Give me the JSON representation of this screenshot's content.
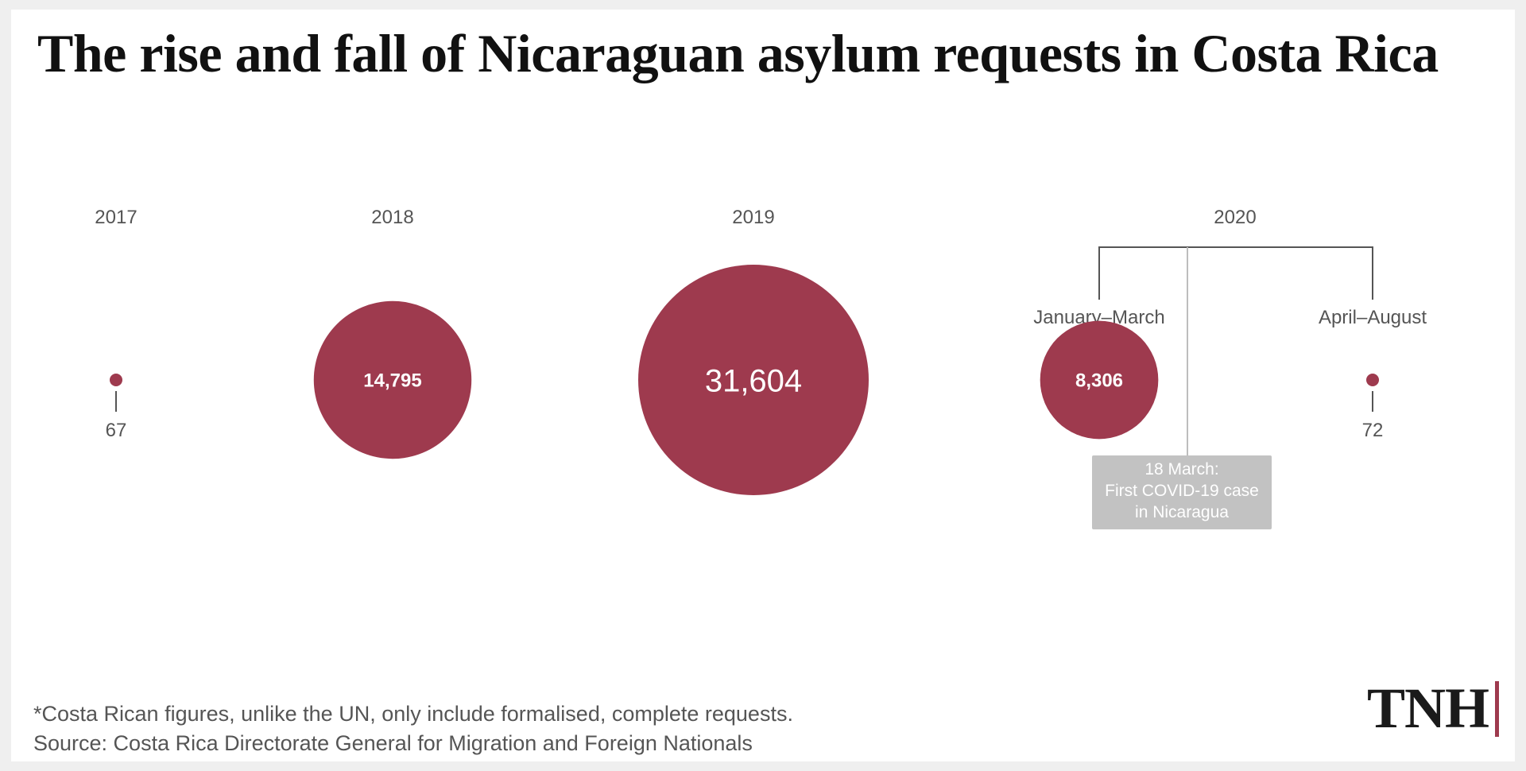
{
  "title": "The rise and fall of Nicaraguan asylum requests in Costa Rica",
  "footnote": {
    "note": "*Costa Rican figures, unlike the UN, only include formalised, complete requests.",
    "source": "Source: Costa Rica Directorate General for Migration and Foreign Nationals"
  },
  "logo": {
    "text": "TNH",
    "bar_color": "#9e3a4e"
  },
  "colors": {
    "bubble": "#9e3a4e",
    "annotation_box": "#c2c2c2",
    "bracket": "#555555"
  },
  "chart_data": {
    "type": "bubble",
    "groups": [
      {
        "year": "2017",
        "items": [
          {
            "label": "",
            "value": 67,
            "value_label": "67"
          }
        ]
      },
      {
        "year": "2018",
        "items": [
          {
            "label": "",
            "value": 14795,
            "value_label": "14,795"
          }
        ]
      },
      {
        "year": "2019",
        "items": [
          {
            "label": "",
            "value": 31604,
            "value_label": "31,604"
          }
        ]
      },
      {
        "year": "2020",
        "items": [
          {
            "label": "January–March",
            "value": 8306,
            "value_label": "8,306"
          },
          {
            "label": "April–August",
            "value": 72,
            "value_label": "72"
          }
        ]
      }
    ],
    "annotation": {
      "lines": [
        "18 March:",
        "First COVID-19 case",
        "in Nicaragua"
      ]
    }
  }
}
